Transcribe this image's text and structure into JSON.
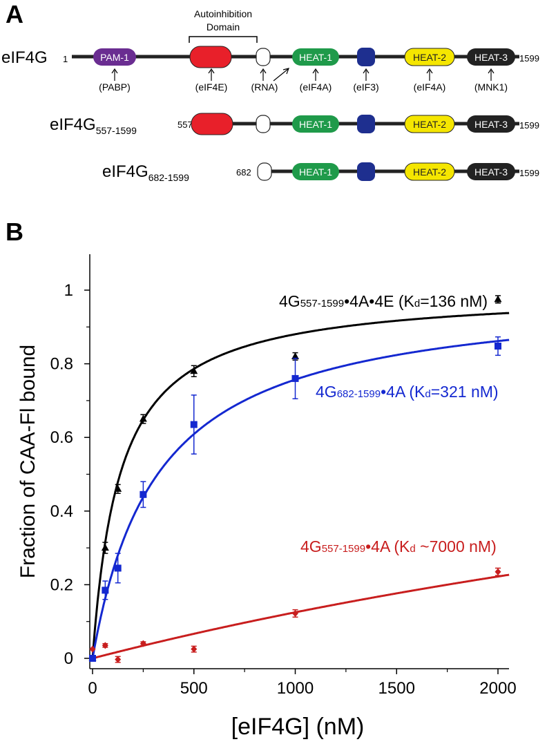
{
  "panel_a": {
    "label": "A",
    "autoinhibition_label_line1": "Autoinhibition",
    "autoinhibition_label_line2": "Domain",
    "constructs": [
      {
        "name": "eIF4G",
        "subscript": "",
        "start": "1",
        "end": "1599",
        "domains": [
          {
            "kind": "pam",
            "label": "PAM-1",
            "color": "#6a2d91"
          },
          {
            "kind": "red",
            "label": "",
            "color": "#e8202a"
          },
          {
            "kind": "white",
            "label": "",
            "color": "#ffffff"
          },
          {
            "kind": "heat1",
            "label": "HEAT-1",
            "color": "#1f9a4a"
          },
          {
            "kind": "blue",
            "label": "",
            "color": "#1e2f8f"
          },
          {
            "kind": "heat2",
            "label": "HEAT-2",
            "color": "#f5e600"
          },
          {
            "kind": "heat3",
            "label": "HEAT-3",
            "color": "#222222"
          }
        ],
        "binders": [
          "(PABP)",
          "(eIF4E)",
          "(RNA)",
          "(eIF4A)",
          "(eIF3)",
          "(eIF4A)",
          "(MNK1)"
        ]
      },
      {
        "name": "eIF4G",
        "subscript": "557-1599",
        "start": "557",
        "end": "1599",
        "domains": [
          {
            "kind": "red",
            "label": ""
          },
          {
            "kind": "white",
            "label": ""
          },
          {
            "kind": "heat1",
            "label": "HEAT-1"
          },
          {
            "kind": "blue",
            "label": ""
          },
          {
            "kind": "heat2",
            "label": "HEAT-2"
          },
          {
            "kind": "heat3",
            "label": "HEAT-3"
          }
        ]
      },
      {
        "name": "eIF4G",
        "subscript": "682-1599",
        "start": "682",
        "end": "1599",
        "domains": [
          {
            "kind": "white",
            "label": ""
          },
          {
            "kind": "heat1",
            "label": "HEAT-1"
          },
          {
            "kind": "blue",
            "label": ""
          },
          {
            "kind": "heat2",
            "label": "HEAT-2"
          },
          {
            "kind": "heat3",
            "label": "HEAT-3"
          }
        ]
      }
    ]
  },
  "panel_b": {
    "label": "B"
  },
  "chart_data": {
    "type": "scatter",
    "xlabel": "[eIF4G] (nM)",
    "ylabel": "Fraction of CAA-Fl bound",
    "xlim": [
      -10,
      2060
    ],
    "ylim": [
      -0.02,
      1.1
    ],
    "xticks": [
      0,
      500,
      1000,
      1500,
      2000
    ],
    "xtick_labels": [
      "0",
      "500",
      "1000",
      "1500",
      "2000"
    ],
    "yticks": [
      0,
      0.2,
      0.4,
      0.6,
      0.8,
      1
    ],
    "ytick_labels": [
      "0",
      "0.2",
      "0.4",
      "0.6",
      "0.8",
      "1"
    ],
    "grid": false,
    "series": [
      {
        "label_parts": [
          "4G",
          "557-1599",
          "•4A•4E (K",
          "d",
          "=136 nM)"
        ],
        "color": "#000000",
        "marker": "triangle",
        "kd": 136,
        "bmax": 1.0,
        "x": [
          0,
          62.5,
          125,
          250,
          500,
          1000,
          2000
        ],
        "y": [
          0.0,
          0.3,
          0.46,
          0.65,
          0.78,
          0.82,
          0.975
        ],
        "err": [
          0.0,
          0.015,
          0.012,
          0.012,
          0.015,
          0.01,
          0.01
        ]
      },
      {
        "label_parts": [
          "4G",
          "682-1599",
          "•4A (K",
          "d",
          "=321 nM)"
        ],
        "color": "#1428d0",
        "marker": "square",
        "kd": 321,
        "bmax": 1.0,
        "x": [
          0,
          62.5,
          125,
          250,
          500,
          1000,
          2000
        ],
        "y": [
          0.0,
          0.185,
          0.245,
          0.445,
          0.635,
          0.76,
          0.848
        ],
        "err": [
          0.0,
          0.025,
          0.04,
          0.035,
          0.08,
          0.055,
          0.025
        ]
      },
      {
        "label_parts": [
          "4G",
          "557-1599",
          "•4A (K",
          "d",
          " ~7000 nM)"
        ],
        "color": "#c81e1e",
        "marker": "diamond",
        "kd": 7000,
        "bmax": 1.0,
        "x": [
          0,
          62.5,
          125,
          250,
          500,
          1000,
          2000
        ],
        "y": [
          0.025,
          0.035,
          -0.003,
          0.04,
          0.025,
          0.122,
          0.235
        ],
        "err": [
          0.0,
          0.005,
          0.008,
          0.005,
          0.008,
          0.01,
          0.01
        ]
      }
    ]
  }
}
